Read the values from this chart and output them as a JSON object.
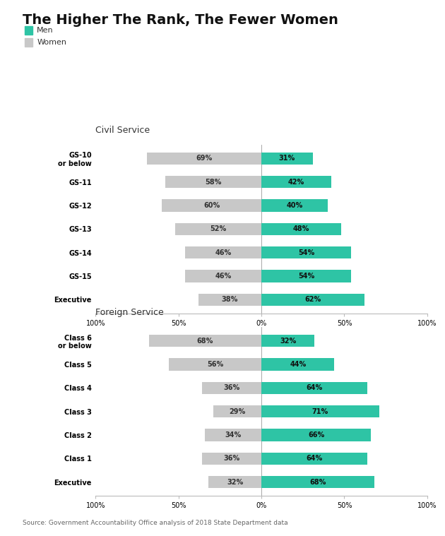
{
  "title": "The Higher The Rank, The Fewer Women",
  "civil_service": {
    "section_label": "Civil Service",
    "categories": [
      "GS-10\nor below",
      "GS-11",
      "GS-12",
      "GS-13",
      "GS-14",
      "GS-15",
      "Executive"
    ],
    "women_pct": [
      69,
      58,
      60,
      52,
      46,
      46,
      38
    ],
    "men_pct": [
      31,
      42,
      40,
      48,
      54,
      54,
      62
    ]
  },
  "foreign_service": {
    "section_label": "Foreign Service",
    "categories": [
      "Class 6\nor below",
      "Class 5",
      "Class 4",
      "Class 3",
      "Class 2",
      "Class 1",
      "Executive"
    ],
    "women_pct": [
      68,
      56,
      36,
      29,
      34,
      36,
      32
    ],
    "men_pct": [
      32,
      44,
      64,
      71,
      66,
      64,
      68
    ]
  },
  "source_text": "Source: Government Accountability Office analysis of 2018 State Department data",
  "men_color": "#2ec4a5",
  "women_color": "#c8c8c8",
  "bar_height": 0.52,
  "background_color": "#ffffff",
  "title_fontsize": 14,
  "label_fontsize": 7,
  "category_fontsize": 7,
  "section_fontsize": 9,
  "source_fontsize": 6.5
}
